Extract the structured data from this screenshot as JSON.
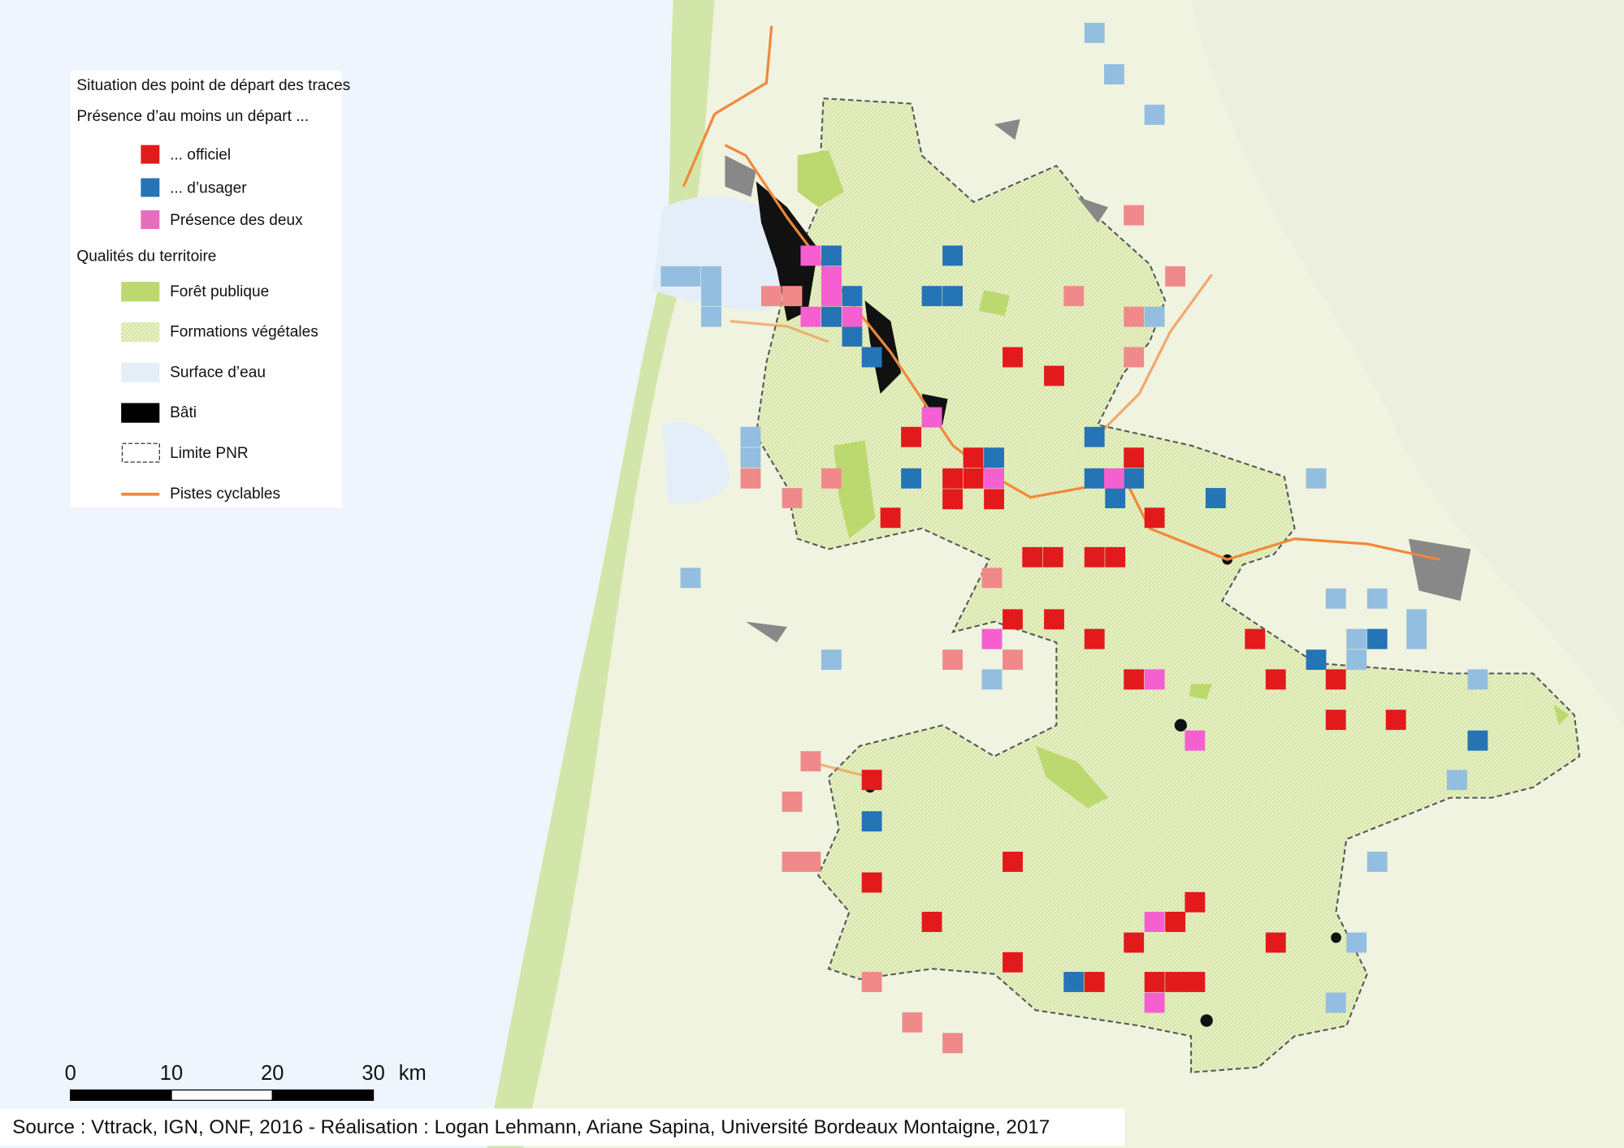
{
  "legend": {
    "title": "Situation des point de départ des traces",
    "subtitle": "Présence d’au moins un départ ...",
    "start_items": [
      {
        "label": "... officiel",
        "color": "#e31a1c"
      },
      {
        "label": "... d’usager",
        "color": "#2474b6"
      },
      {
        "label": "Présence des deux",
        "color": "#e46fbe"
      }
    ],
    "section": "Qualités du territoire",
    "territory_items": [
      {
        "label": "Forêt publique"
      },
      {
        "label": "Formations végétales"
      },
      {
        "label": "Surface d’eau"
      },
      {
        "label": "Bâti"
      },
      {
        "label": "Limite PNR"
      },
      {
        "label": "Pistes cyclables"
      }
    ]
  },
  "scale_bar": {
    "ticks": [
      0,
      10,
      20,
      30
    ],
    "unit": "km"
  },
  "source": "Source : Vttrack, IGN, ONF, 2016 - Réalisation : Logan Lehmann, Ariane Sapina, Université Bordeaux Montaigne, 2017"
}
